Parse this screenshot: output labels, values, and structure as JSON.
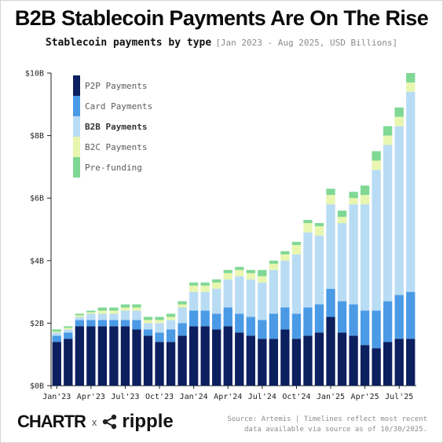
{
  "title": "B2B Stablecoin Payments Are On The Rise",
  "subtitle": "Stablecoin payments by type",
  "subtitle_range": "[Jan 2023 - Aug 2025, USD Billions]",
  "source_line1": "Source: Artemis | Timelines reflect most recent",
  "source_line2": "data available via source as of 10/30/2025.",
  "logos": {
    "chartr": "CHARTR",
    "x": "x",
    "ripple": "ripple"
  },
  "colors": {
    "p2p": "#0c1f5e",
    "card": "#4a9ae6",
    "b2b": "#b9dcf5",
    "b2c": "#e8f6b0",
    "prefunding": "#7fd894",
    "axis": "#222222"
  },
  "chart_data": {
    "type": "bar",
    "stacked": true,
    "title": "B2B Stablecoin Payments Are On The Rise",
    "subtitle": "Stablecoin payments by type",
    "unit": "USD Billions",
    "ylim": [
      0,
      10
    ],
    "yticks": [
      "$0B",
      "$2B",
      "$4B",
      "$6B",
      "$8B",
      "$10B"
    ],
    "xtick_labels": [
      "Jan'23",
      "Apr'23",
      "Jul'23",
      "Oct'23",
      "Jan'24",
      "Apr'24",
      "Jul'24",
      "Oct'24",
      "Jan'25",
      "Apr'25",
      "Jul'25"
    ],
    "grid": false,
    "legend_position": "top-left",
    "categories": [
      "Jan'23",
      "Feb'23",
      "Mar'23",
      "Apr'23",
      "May'23",
      "Jun'23",
      "Jul'23",
      "Aug'23",
      "Sep'23",
      "Oct'23",
      "Nov'23",
      "Dec'23",
      "Jan'24",
      "Feb'24",
      "Mar'24",
      "Apr'24",
      "May'24",
      "Jun'24",
      "Jul'24",
      "Aug'24",
      "Sep'24",
      "Oct'24",
      "Nov'24",
      "Dec'24",
      "Jan'25",
      "Feb'25",
      "Mar'25",
      "Apr'25",
      "May'25",
      "Jun'25",
      "Jul'25",
      "Aug'25"
    ],
    "series": [
      {
        "name": "P2P Payments",
        "key": "p2p",
        "values": [
          1.4,
          1.5,
          1.9,
          1.9,
          1.9,
          1.9,
          1.9,
          1.8,
          1.6,
          1.4,
          1.4,
          1.6,
          1.9,
          1.9,
          1.8,
          1.9,
          1.7,
          1.6,
          1.5,
          1.5,
          1.8,
          1.5,
          1.6,
          1.7,
          2.2,
          1.7,
          1.6,
          1.3,
          1.2,
          1.4,
          1.5,
          1.5
        ]
      },
      {
        "name": "Card Payments",
        "key": "card",
        "values": [
          0.2,
          0.2,
          0.2,
          0.2,
          0.2,
          0.2,
          0.2,
          0.3,
          0.2,
          0.3,
          0.4,
          0.4,
          0.5,
          0.5,
          0.5,
          0.6,
          0.6,
          0.6,
          0.6,
          0.8,
          0.7,
          0.8,
          0.9,
          0.9,
          0.9,
          1.0,
          1.0,
          1.1,
          1.2,
          1.3,
          1.4,
          1.5
        ]
      },
      {
        "name": "B2B Payments",
        "key": "b2b",
        "values": [
          0.1,
          0.1,
          0.1,
          0.2,
          0.2,
          0.2,
          0.3,
          0.3,
          0.2,
          0.3,
          0.3,
          0.5,
          0.6,
          0.6,
          0.8,
          0.9,
          1.2,
          1.2,
          1.2,
          1.4,
          1.5,
          1.9,
          2.4,
          2.2,
          2.7,
          2.5,
          3.2,
          3.4,
          4.5,
          5.0,
          5.4,
          6.4
        ]
      },
      {
        "name": "B2C Payments",
        "key": "b2c",
        "values": [
          0.03,
          0.05,
          0.05,
          0.05,
          0.1,
          0.1,
          0.1,
          0.1,
          0.1,
          0.1,
          0.1,
          0.1,
          0.2,
          0.2,
          0.2,
          0.2,
          0.2,
          0.2,
          0.2,
          0.2,
          0.2,
          0.3,
          0.3,
          0.3,
          0.3,
          0.2,
          0.2,
          0.3,
          0.3,
          0.3,
          0.3,
          0.3
        ]
      },
      {
        "name": "Pre-funding",
        "key": "prefunding",
        "values": [
          0.07,
          0.05,
          0.05,
          0.05,
          0.1,
          0.1,
          0.1,
          0.1,
          0.1,
          0.1,
          0.1,
          0.1,
          0.1,
          0.1,
          0.1,
          0.1,
          0.1,
          0.1,
          0.2,
          0.1,
          0.1,
          0.1,
          0.1,
          0.1,
          0.2,
          0.2,
          0.2,
          0.3,
          0.3,
          0.3,
          0.3,
          0.3
        ]
      }
    ]
  }
}
